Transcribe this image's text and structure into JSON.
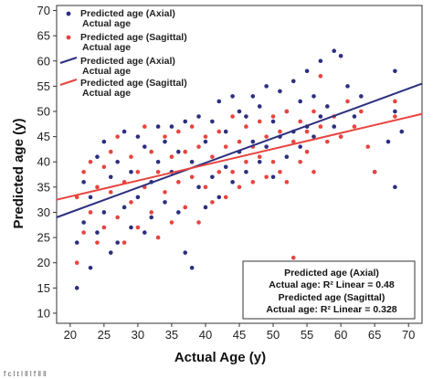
{
  "chart_data": {
    "type": "scatter",
    "xlabel": "Actual Age (y)",
    "ylabel": "Predicted age (y)",
    "xlim": [
      18,
      72
    ],
    "ylim": [
      8,
      71
    ],
    "xticks": [
      20,
      25,
      30,
      35,
      40,
      45,
      50,
      55,
      60,
      65,
      70
    ],
    "yticks": [
      10,
      15,
      20,
      25,
      30,
      35,
      40,
      45,
      50,
      55,
      60,
      65,
      70
    ],
    "grid": false,
    "legend_position": "top-left",
    "series": [
      {
        "name": "Predicted age (Axial)\nActual age",
        "kind": "points",
        "color": "#2c2f7e",
        "marker": "circle",
        "points": [
          [
            21,
            15
          ],
          [
            21,
            24
          ],
          [
            22,
            28
          ],
          [
            22,
            36
          ],
          [
            23,
            19
          ],
          [
            23,
            33
          ],
          [
            24,
            26
          ],
          [
            24,
            41
          ],
          [
            25,
            44
          ],
          [
            25,
            30
          ],
          [
            26,
            22
          ],
          [
            26,
            37
          ],
          [
            27,
            24
          ],
          [
            27,
            40
          ],
          [
            28,
            31
          ],
          [
            28,
            46
          ],
          [
            29,
            27
          ],
          [
            29,
            38
          ],
          [
            30,
            45
          ],
          [
            30,
            33
          ],
          [
            31,
            26
          ],
          [
            31,
            43
          ],
          [
            32,
            36
          ],
          [
            32,
            29
          ],
          [
            33,
            47
          ],
          [
            33,
            40
          ],
          [
            34,
            32
          ],
          [
            34,
            44
          ],
          [
            35,
            38
          ],
          [
            35,
            47
          ],
          [
            36,
            30
          ],
          [
            36,
            42
          ],
          [
            37,
            22
          ],
          [
            37,
            48
          ],
          [
            38,
            19
          ],
          [
            38,
            40
          ],
          [
            39,
            35
          ],
          [
            39,
            49
          ],
          [
            40,
            44
          ],
          [
            40,
            31
          ],
          [
            41,
            48
          ],
          [
            41,
            37
          ],
          [
            42,
            52
          ],
          [
            42,
            33
          ],
          [
            43,
            46
          ],
          [
            43,
            39
          ],
          [
            44,
            53
          ],
          [
            44,
            36
          ],
          [
            45,
            50
          ],
          [
            45,
            42
          ],
          [
            46,
            49
          ],
          [
            46,
            38
          ],
          [
            47,
            53
          ],
          [
            47,
            44
          ],
          [
            48,
            51
          ],
          [
            48,
            40
          ],
          [
            49,
            55
          ],
          [
            49,
            43
          ],
          [
            50,
            48
          ],
          [
            50,
            37
          ],
          [
            51,
            54
          ],
          [
            51,
            45
          ],
          [
            52,
            50
          ],
          [
            52,
            41
          ],
          [
            53,
            56
          ],
          [
            53,
            46
          ],
          [
            54,
            52
          ],
          [
            54,
            43
          ],
          [
            55,
            58
          ],
          [
            55,
            47
          ],
          [
            56,
            53
          ],
          [
            56,
            45
          ],
          [
            57,
            49
          ],
          [
            57,
            60
          ],
          [
            58,
            51
          ],
          [
            59,
            62
          ],
          [
            59,
            47
          ],
          [
            60,
            61
          ],
          [
            60,
            45
          ],
          [
            61,
            55
          ],
          [
            62,
            49
          ],
          [
            63,
            53
          ],
          [
            65,
            38
          ],
          [
            67,
            44
          ],
          [
            68,
            58
          ],
          [
            68,
            50
          ],
          [
            68,
            35
          ],
          [
            69,
            46
          ]
        ]
      },
      {
        "name": "Predicted age (Sagittal)\nActual age",
        "kind": "points",
        "color": "#e8443f",
        "marker": "circle",
        "points": [
          [
            21,
            20
          ],
          [
            21,
            33
          ],
          [
            22,
            38
          ],
          [
            22,
            26
          ],
          [
            23,
            30
          ],
          [
            23,
            40
          ],
          [
            24,
            24
          ],
          [
            24,
            35
          ],
          [
            25,
            39
          ],
          [
            25,
            27
          ],
          [
            26,
            34
          ],
          [
            26,
            42
          ],
          [
            27,
            29
          ],
          [
            27,
            45
          ],
          [
            28,
            36
          ],
          [
            28,
            24
          ],
          [
            29,
            41
          ],
          [
            29,
            32
          ],
          [
            30,
            38
          ],
          [
            30,
            27
          ],
          [
            31,
            47
          ],
          [
            31,
            35
          ],
          [
            32,
            42
          ],
          [
            32,
            30
          ],
          [
            33,
            38
          ],
          [
            33,
            25
          ],
          [
            34,
            45
          ],
          [
            34,
            34
          ],
          [
            35,
            41
          ],
          [
            35,
            28
          ],
          [
            36,
            46
          ],
          [
            36,
            36
          ],
          [
            37,
            42
          ],
          [
            37,
            31
          ],
          [
            38,
            47
          ],
          [
            38,
            37
          ],
          [
            39,
            43
          ],
          [
            39,
            28
          ],
          [
            40,
            45
          ],
          [
            40,
            35
          ],
          [
            41,
            41
          ],
          [
            41,
            32
          ],
          [
            42,
            46
          ],
          [
            42,
            38
          ],
          [
            43,
            43
          ],
          [
            43,
            33
          ],
          [
            44,
            49
          ],
          [
            44,
            38
          ],
          [
            45,
            44
          ],
          [
            45,
            35
          ],
          [
            46,
            47
          ],
          [
            46,
            40
          ],
          [
            47,
            43
          ],
          [
            47,
            36
          ],
          [
            48,
            48
          ],
          [
            48,
            41
          ],
          [
            49,
            45
          ],
          [
            49,
            37
          ],
          [
            50,
            49
          ],
          [
            50,
            40
          ],
          [
            51,
            46
          ],
          [
            51,
            38
          ],
          [
            52,
            50
          ],
          [
            52,
            36
          ],
          [
            53,
            44
          ],
          [
            53,
            21
          ],
          [
            54,
            48
          ],
          [
            54,
            40
          ],
          [
            55,
            46
          ],
          [
            55,
            42
          ],
          [
            56,
            50
          ],
          [
            56,
            38
          ],
          [
            57,
            47
          ],
          [
            57,
            57
          ],
          [
            58,
            44
          ],
          [
            59,
            49
          ],
          [
            60,
            45
          ],
          [
            61,
            52
          ],
          [
            62,
            47
          ],
          [
            63,
            50
          ],
          [
            64,
            43
          ],
          [
            65,
            38
          ],
          [
            68,
            52
          ],
          [
            68,
            49
          ]
        ]
      },
      {
        "name": "Predicted age (Axial)\nActual age",
        "kind": "line",
        "color": "#2c2f7e",
        "r2_label": "Predicted age (Axial)\nActual age: R² Linear = 0.48",
        "endpoints": [
          [
            18,
            29
          ],
          [
            72,
            55.5
          ]
        ]
      },
      {
        "name": "Predicted age (Sagittal)\nActual age",
        "kind": "line",
        "color": "#e8443f",
        "r2_label": "Predicted age (Sagittal)\nActual age: R² Linear = 0.328",
        "endpoints": [
          [
            18,
            32.5
          ],
          [
            72,
            49.5
          ]
        ]
      }
    ]
  },
  "legend": [
    {
      "line1": "Predicted age (Axial)",
      "line2": "Actual age",
      "symbol": "dot",
      "color": "#2c2f7e"
    },
    {
      "line1": "Predicted age (Sagittal)",
      "line2": "Actual age",
      "symbol": "dot",
      "color": "#e8443f"
    },
    {
      "line1": "Predicted age (Axial)",
      "line2": "Actual age",
      "symbol": "line",
      "color": "#2c2f7e"
    },
    {
      "line1": "Predicted age (Sagittal)",
      "line2": "Actual age",
      "symbol": "line",
      "color": "#e8443f"
    }
  ],
  "stats_box": {
    "l1": "Predicted age (Axial)",
    "l2": "Actual age: R² Linear = 0.48",
    "l3": "Predicted age (Sagittal)",
    "l4": "Actual age: R² Linear = 0.328"
  },
  "caption": "f c l t    l ll l  f ll ll"
}
